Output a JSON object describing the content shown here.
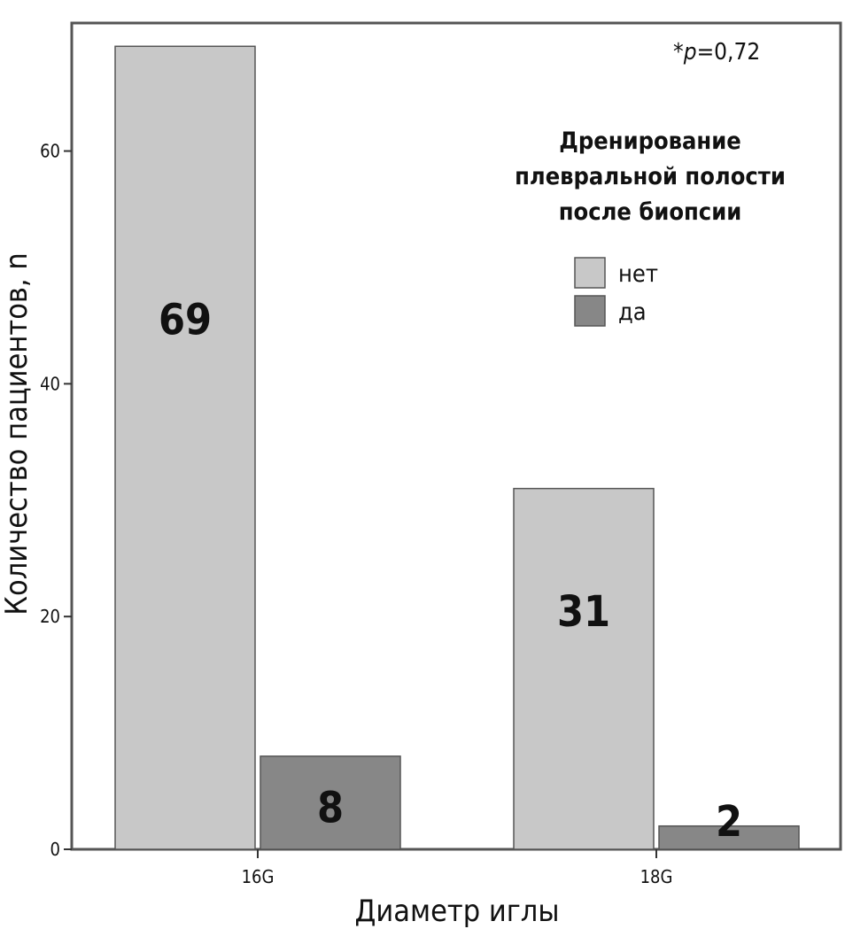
{
  "chart_data": {
    "type": "bar",
    "xlabel": "Диаметр иглы",
    "ylabel": "Количество пациентов, n",
    "ylim": [
      0,
      71
    ],
    "yticks": [
      0,
      20,
      40,
      60
    ],
    "categories": [
      "16G",
      "18G"
    ],
    "series": [
      {
        "name": "нет",
        "values": [
          69,
          31
        ],
        "color": "#c8c8c8"
      },
      {
        "name": "да",
        "values": [
          8,
          2
        ],
        "color": "#878787"
      }
    ],
    "data_labels": [
      [
        "69",
        "31"
      ],
      [
        "8",
        "2"
      ]
    ],
    "legend": {
      "title_lines": [
        "Дренирование",
        "плевральной полости",
        "после биопсии"
      ],
      "placement": "top-right"
    },
    "annotation": {
      "prefix": "*",
      "symbol": "p",
      "value": "=0,72"
    },
    "grid": false
  }
}
